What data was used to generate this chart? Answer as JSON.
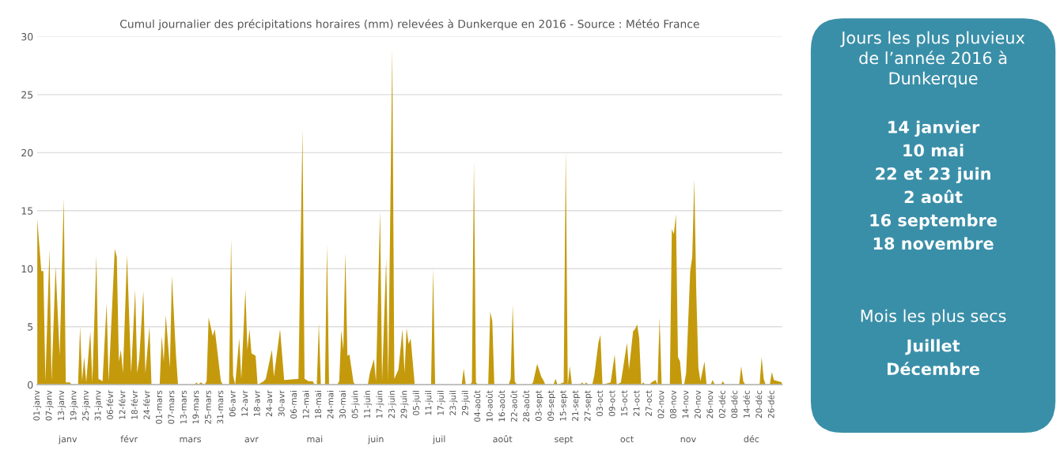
{
  "chart_data": [
    {
      "type": "area",
      "title": "Cumul journalier des précipitations horaires (mm) relevées à Dunkerque en 2016 - Source : Météo France",
      "x": [
        "2016-01-01",
        "2016-01-03",
        "2016-01-04",
        "2016-01-05",
        "2016-01-07",
        "2016-01-08",
        "2016-01-10",
        "2016-01-12",
        "2016-01-14",
        "2016-01-15",
        "2016-01-17",
        "2016-01-18",
        "2016-01-21",
        "2016-01-22",
        "2016-01-23",
        "2016-01-24",
        "2016-01-25",
        "2016-01-27",
        "2016-01-28",
        "2016-01-30",
        "2016-01-31",
        "2016-02-02",
        "2016-02-04",
        "2016-02-05",
        "2016-02-08",
        "2016-02-09",
        "2016-02-10",
        "2016-02-11",
        "2016-02-12",
        "2016-02-14",
        "2016-02-16",
        "2016-02-18",
        "2016-02-19",
        "2016-02-20",
        "2016-02-22",
        "2016-02-23",
        "2016-02-25",
        "2016-02-26",
        "2016-03-01",
        "2016-03-02",
        "2016-03-03",
        "2016-03-04",
        "2016-03-06",
        "2016-03-07",
        "2016-03-09",
        "2016-03-10",
        "2016-03-18",
        "2016-03-19",
        "2016-03-20",
        "2016-03-21",
        "2016-03-23",
        "2016-03-24",
        "2016-03-25",
        "2016-03-27",
        "2016-03-28",
        "2016-03-31",
        "2016-04-01",
        "2016-04-04",
        "2016-04-05",
        "2016-04-06",
        "2016-04-07",
        "2016-04-09",
        "2016-04-10",
        "2016-04-12",
        "2016-04-13",
        "2016-04-14",
        "2016-04-15",
        "2016-04-17",
        "2016-04-18",
        "2016-04-21",
        "2016-04-22",
        "2016-04-25",
        "2016-04-26",
        "2016-04-29",
        "2016-05-01",
        "2016-05-08",
        "2016-05-10",
        "2016-05-11",
        "2016-05-13",
        "2016-05-15",
        "2016-05-16",
        "2016-05-17",
        "2016-05-18",
        "2016-05-19",
        "2016-05-21",
        "2016-05-22",
        "2016-05-23",
        "2016-05-27",
        "2016-05-28",
        "2016-05-29",
        "2016-05-30",
        "2016-05-31",
        "2016-06-01",
        "2016-06-02",
        "2016-06-04",
        "2016-06-05",
        "2016-06-11",
        "2016-06-12",
        "2016-06-14",
        "2016-06-15",
        "2016-06-17",
        "2016-06-18",
        "2016-06-20",
        "2016-06-21",
        "2016-06-23",
        "2016-06-24",
        "2016-06-26",
        "2016-06-28",
        "2016-06-29",
        "2016-06-30",
        "2016-07-01",
        "2016-07-02",
        "2016-07-04",
        "2016-07-12",
        "2016-07-13",
        "2016-07-14",
        "2016-07-27",
        "2016-07-28",
        "2016-07-29",
        "2016-07-31",
        "2016-08-01",
        "2016-08-02",
        "2016-08-03",
        "2016-08-04",
        "2016-08-09",
        "2016-08-10",
        "2016-08-11",
        "2016-08-12",
        "2016-08-19",
        "2016-08-20",
        "2016-08-21",
        "2016-08-22",
        "2016-08-23",
        "2016-08-30",
        "2016-08-31",
        "2016-09-02",
        "2016-09-04",
        "2016-09-05",
        "2016-09-06",
        "2016-09-10",
        "2016-09-11",
        "2016-09-12",
        "2016-09-15",
        "2016-09-16",
        "2016-09-17",
        "2016-09-18",
        "2016-09-19",
        "2016-09-23",
        "2016-09-24",
        "2016-09-25",
        "2016-09-26",
        "2016-09-27",
        "2016-09-29",
        "2016-09-30",
        "2016-10-02",
        "2016-10-03",
        "2016-10-04",
        "2016-10-08",
        "2016-10-10",
        "2016-10-11",
        "2016-10-13",
        "2016-10-14",
        "2016-10-16",
        "2016-10-17",
        "2016-10-19",
        "2016-10-20",
        "2016-10-21",
        "2016-10-22",
        "2016-10-23",
        "2016-10-24",
        "2016-10-25",
        "2016-10-27",
        "2016-10-28",
        "2016-10-29",
        "2016-10-30",
        "2016-10-31",
        "2016-11-01",
        "2016-11-02",
        "2016-11-06",
        "2016-11-07",
        "2016-11-08",
        "2016-11-09",
        "2016-11-10",
        "2016-11-11",
        "2016-11-12",
        "2016-11-13",
        "2016-11-14",
        "2016-11-16",
        "2016-11-17",
        "2016-11-18",
        "2016-11-19",
        "2016-11-20",
        "2016-11-21",
        "2016-11-23",
        "2016-11-24",
        "2016-11-26",
        "2016-11-27",
        "2016-11-28",
        "2016-12-01",
        "2016-12-02",
        "2016-12-03",
        "2016-12-10",
        "2016-12-11",
        "2016-12-12",
        "2016-12-13",
        "2016-12-20",
        "2016-12-21",
        "2016-12-22",
        "2016-12-23",
        "2016-12-25",
        "2016-12-26",
        "2016-12-27",
        "2016-12-29",
        "2016-12-31"
      ],
      "values": [
        14.3,
        9.8,
        9.8,
        0.3,
        11.7,
        0.3,
        10.2,
        2.5,
        16.1,
        0.2,
        0.2,
        0,
        0,
        5.0,
        0.3,
        2.4,
        0.2,
        4.6,
        0.2,
        11.1,
        0.5,
        0.3,
        7.0,
        0.3,
        11.7,
        11.0,
        2.0,
        3.0,
        1.0,
        11.2,
        1.0,
        8.2,
        1.0,
        2.3,
        8.1,
        1.0,
        5.0,
        0,
        0,
        4.2,
        2.0,
        6.0,
        1.5,
        9.4,
        2.5,
        0,
        0,
        0.2,
        0,
        0.2,
        0,
        0.3,
        5.8,
        4.2,
        4.8,
        0.3,
        0,
        0,
        12.6,
        0.8,
        0,
        4.0,
        0.5,
        8.2,
        3.0,
        4.8,
        2.7,
        2.5,
        0,
        0.3,
        0.5,
        3.0,
        0.7,
        4.8,
        0.4,
        0.5,
        22.0,
        0.5,
        0.3,
        0.3,
        0,
        0,
        5.3,
        0,
        0,
        12.1,
        0,
        0,
        0.3,
        4.7,
        3.0,
        11.4,
        2.5,
        2.6,
        0.2,
        0,
        0,
        1.0,
        2.2,
        0.3,
        15.0,
        0.3,
        10.9,
        0.3,
        29.0,
        0.5,
        1.3,
        4.8,
        1.0,
        4.9,
        3.5,
        4.0,
        0,
        0,
        10.0,
        0,
        0,
        1.4,
        0,
        0,
        0.2,
        19.3,
        0.2,
        0,
        0,
        6.3,
        5.5,
        0,
        0,
        0.5,
        6.9,
        0.3,
        0,
        0,
        0.2,
        1.8,
        0.7,
        0.4,
        0,
        0,
        0.5,
        0,
        0.2,
        20.2,
        0,
        1.6,
        0,
        0,
        0.2,
        0,
        0.2,
        0,
        0,
        0.8,
        3.6,
        4.3,
        0,
        0.2,
        2.6,
        0,
        0.2,
        1.3,
        3.6,
        1.3,
        4.6,
        4.8,
        5.2,
        4.0,
        0,
        0.2,
        0,
        0,
        0.2,
        0.3,
        0.4,
        0,
        5.8,
        0,
        0,
        13.4,
        13.0,
        14.7,
        2.4,
        2.0,
        0,
        0,
        1.0,
        9.8,
        11.0,
        17.7,
        7.8,
        1.5,
        0.3,
        2.0,
        0,
        0,
        0.4,
        0,
        0,
        0.3,
        0,
        0,
        1.6,
        0.3,
        0,
        0,
        2.4,
        0.5,
        0,
        0,
        1.1,
        0.4,
        0.3,
        0.2
      ],
      "color": "#c49a0c",
      "xlim": [
        "2016-01-01",
        "2016-12-31"
      ],
      "xticks": [
        {
          "value": "2016-01-01",
          "label": "01-janv"
        },
        {
          "value": "2016-01-07",
          "label": "07-janv"
        },
        {
          "value": "2016-01-13",
          "label": "13-janv"
        },
        {
          "value": "2016-01-19",
          "label": "19-janv"
        },
        {
          "value": "2016-01-25",
          "label": "25-janv"
        },
        {
          "value": "2016-01-31",
          "label": "31-janv"
        },
        {
          "value": "2016-02-06",
          "label": "06-févr"
        },
        {
          "value": "2016-02-12",
          "label": "12-févr"
        },
        {
          "value": "2016-02-18",
          "label": "18-févr"
        },
        {
          "value": "2016-02-24",
          "label": "24-févr"
        },
        {
          "value": "2016-03-01",
          "label": "01-mars"
        },
        {
          "value": "2016-03-07",
          "label": "07-mars"
        },
        {
          "value": "2016-03-13",
          "label": "13-mars"
        },
        {
          "value": "2016-03-19",
          "label": "19-mars"
        },
        {
          "value": "2016-03-25",
          "label": "25-mars"
        },
        {
          "value": "2016-03-31",
          "label": "31-mars"
        },
        {
          "value": "2016-04-06",
          "label": "06-avr"
        },
        {
          "value": "2016-04-12",
          "label": "12-avr"
        },
        {
          "value": "2016-04-18",
          "label": "18-avr"
        },
        {
          "value": "2016-04-24",
          "label": "24-avr"
        },
        {
          "value": "2016-04-30",
          "label": "30-avr"
        },
        {
          "value": "2016-05-06",
          "label": "06-mai"
        },
        {
          "value": "2016-05-12",
          "label": "12-mai"
        },
        {
          "value": "2016-05-18",
          "label": "18-mai"
        },
        {
          "value": "2016-05-24",
          "label": "24-mai"
        },
        {
          "value": "2016-05-30",
          "label": "30-mai"
        },
        {
          "value": "2016-06-05",
          "label": "05-juin"
        },
        {
          "value": "2016-06-11",
          "label": "11-juin"
        },
        {
          "value": "2016-06-17",
          "label": "17-juin"
        },
        {
          "value": "2016-06-23",
          "label": "23-juin"
        },
        {
          "value": "2016-06-29",
          "label": "29-juin"
        },
        {
          "value": "2016-07-05",
          "label": "05-juil"
        },
        {
          "value": "2016-07-11",
          "label": "11-juil"
        },
        {
          "value": "2016-07-17",
          "label": "17-juil"
        },
        {
          "value": "2016-07-23",
          "label": "23-juil"
        },
        {
          "value": "2016-07-29",
          "label": "29-juil"
        },
        {
          "value": "2016-08-04",
          "label": "04-août"
        },
        {
          "value": "2016-08-10",
          "label": "10-août"
        },
        {
          "value": "2016-08-16",
          "label": "16-août"
        },
        {
          "value": "2016-08-22",
          "label": "22-août"
        },
        {
          "value": "2016-08-28",
          "label": "28-août"
        },
        {
          "value": "2016-09-03",
          "label": "03-sept"
        },
        {
          "value": "2016-09-09",
          "label": "09-sept"
        },
        {
          "value": "2016-09-15",
          "label": "15-sept"
        },
        {
          "value": "2016-09-21",
          "label": "21-sept"
        },
        {
          "value": "2016-09-27",
          "label": "27-sept"
        },
        {
          "value": "2016-10-03",
          "label": "03-oct"
        },
        {
          "value": "2016-10-09",
          "label": "09-oct"
        },
        {
          "value": "2016-10-15",
          "label": "15-oct"
        },
        {
          "value": "2016-10-21",
          "label": "21-oct"
        },
        {
          "value": "2016-10-27",
          "label": "27-oct"
        },
        {
          "value": "2016-11-02",
          "label": "02-nov"
        },
        {
          "value": "2016-11-08",
          "label": "08-nov"
        },
        {
          "value": "2016-11-14",
          "label": "14-nov"
        },
        {
          "value": "2016-11-20",
          "label": "20-nov"
        },
        {
          "value": "2016-11-26",
          "label": "26-nov"
        },
        {
          "value": "2016-12-02",
          "label": "02-déc"
        },
        {
          "value": "2016-12-08",
          "label": "08-déc"
        },
        {
          "value": "2016-12-14",
          "label": "14-déc"
        },
        {
          "value": "2016-12-20",
          "label": "20-déc"
        },
        {
          "value": "2016-12-26",
          "label": "26-déc"
        }
      ],
      "x2lim": [
        "2016-01-01",
        "2016-12-31"
      ],
      "x2ticks": [
        {
          "value": "2016-01-16",
          "label": "janv"
        },
        {
          "value": "2016-02-15",
          "label": "févr"
        },
        {
          "value": "2016-03-16",
          "label": "mars"
        },
        {
          "value": "2016-04-15",
          "label": "avr"
        },
        {
          "value": "2016-05-16",
          "label": "mai"
        },
        {
          "value": "2016-06-15",
          "label": "juin"
        },
        {
          "value": "2016-07-16",
          "label": "juil"
        },
        {
          "value": "2016-08-16",
          "label": "août"
        },
        {
          "value": "2016-09-15",
          "label": "sept"
        },
        {
          "value": "2016-10-16",
          "label": "oct"
        },
        {
          "value": "2016-11-15",
          "label": "nov"
        },
        {
          "value": "2016-12-16",
          "label": "déc"
        }
      ],
      "ylim": [
        0,
        30
      ],
      "yticks": [
        0,
        5,
        10,
        15,
        20,
        25,
        30
      ],
      "grid": "y"
    },
    {
      "type": "other",
      "title": "Jours les plus pluvieux\nde l’année 2016 à\nDunkerque",
      "annotations": [
        "14 janvier",
        "10 mai",
        "22 et 23 juin",
        "2 août",
        "16 septembre",
        "18 novembre"
      ]
    },
    {
      "type": "other",
      "title": "Mois les plus secs",
      "annotations": [
        "Juillet",
        "Décembre"
      ]
    }
  ]
}
